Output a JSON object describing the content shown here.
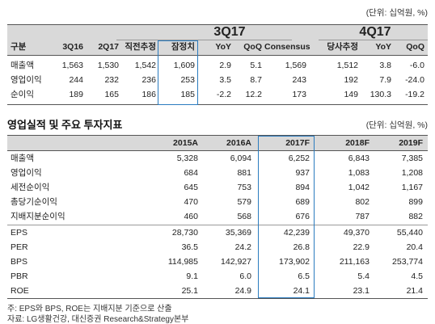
{
  "top": {
    "unit": "(단위: 십억원, %)",
    "group_3q17": "3Q17",
    "group_4q17": "4Q17",
    "headers": [
      "구분",
      "3Q16",
      "2Q17",
      "직전추정",
      "잠정치",
      "YoY",
      "QoQ",
      "Consensus",
      "당사추정",
      "YoY",
      "QoQ"
    ],
    "rows": [
      [
        "매출액",
        "1,563",
        "1,530",
        "1,542",
        "1,609",
        "2.9",
        "5.1",
        "1,569",
        "1,512",
        "3.8",
        "-6.0"
      ],
      [
        "영업이익",
        "244",
        "232",
        "236",
        "253",
        "3.5",
        "8.7",
        "243",
        "192",
        "7.9",
        "-24.0"
      ],
      [
        "순이익",
        "189",
        "165",
        "186",
        "185",
        "-2.2",
        "12.2",
        "173",
        "149",
        "130.3",
        "-19.2"
      ]
    ]
  },
  "bottom": {
    "title": "영업실적 및 주요 투자지표",
    "unit": "(단위: 십억원, %)",
    "headers": [
      "",
      "2015A",
      "2016A",
      "2017F",
      "2018F",
      "2019F"
    ],
    "rows": [
      [
        "매출액",
        "5,328",
        "6,094",
        "6,252",
        "6,843",
        "7,385"
      ],
      [
        "영업이익",
        "684",
        "881",
        "937",
        "1,083",
        "1,208"
      ],
      [
        "세전순이익",
        "645",
        "753",
        "894",
        "1,042",
        "1,167"
      ],
      [
        "총당기순이익",
        "470",
        "579",
        "689",
        "802",
        "899"
      ],
      [
        "지배지분순이익",
        "460",
        "568",
        "676",
        "787",
        "882"
      ],
      [
        "EPS",
        "28,730",
        "35,369",
        "42,239",
        "49,370",
        "55,440"
      ],
      [
        "PER",
        "36.5",
        "24.2",
        "26.8",
        "22.9",
        "20.4"
      ],
      [
        "BPS",
        "114,985",
        "142,927",
        "173,902",
        "211,163",
        "253,774"
      ],
      [
        "PBR",
        "9.1",
        "6.0",
        "6.5",
        "5.4",
        "4.5"
      ],
      [
        "ROE",
        "25.1",
        "24.9",
        "24.1",
        "23.1",
        "21.4"
      ]
    ]
  },
  "notes": [
    "주: EPS와 BPS, ROE는 지배지분 기준으로 산출",
    "자료: LG생활건강, 대신증권 Research&Strategy본부"
  ],
  "colors": {
    "highlight": "#2a7bbf",
    "header_band": "#d9d9d9"
  }
}
